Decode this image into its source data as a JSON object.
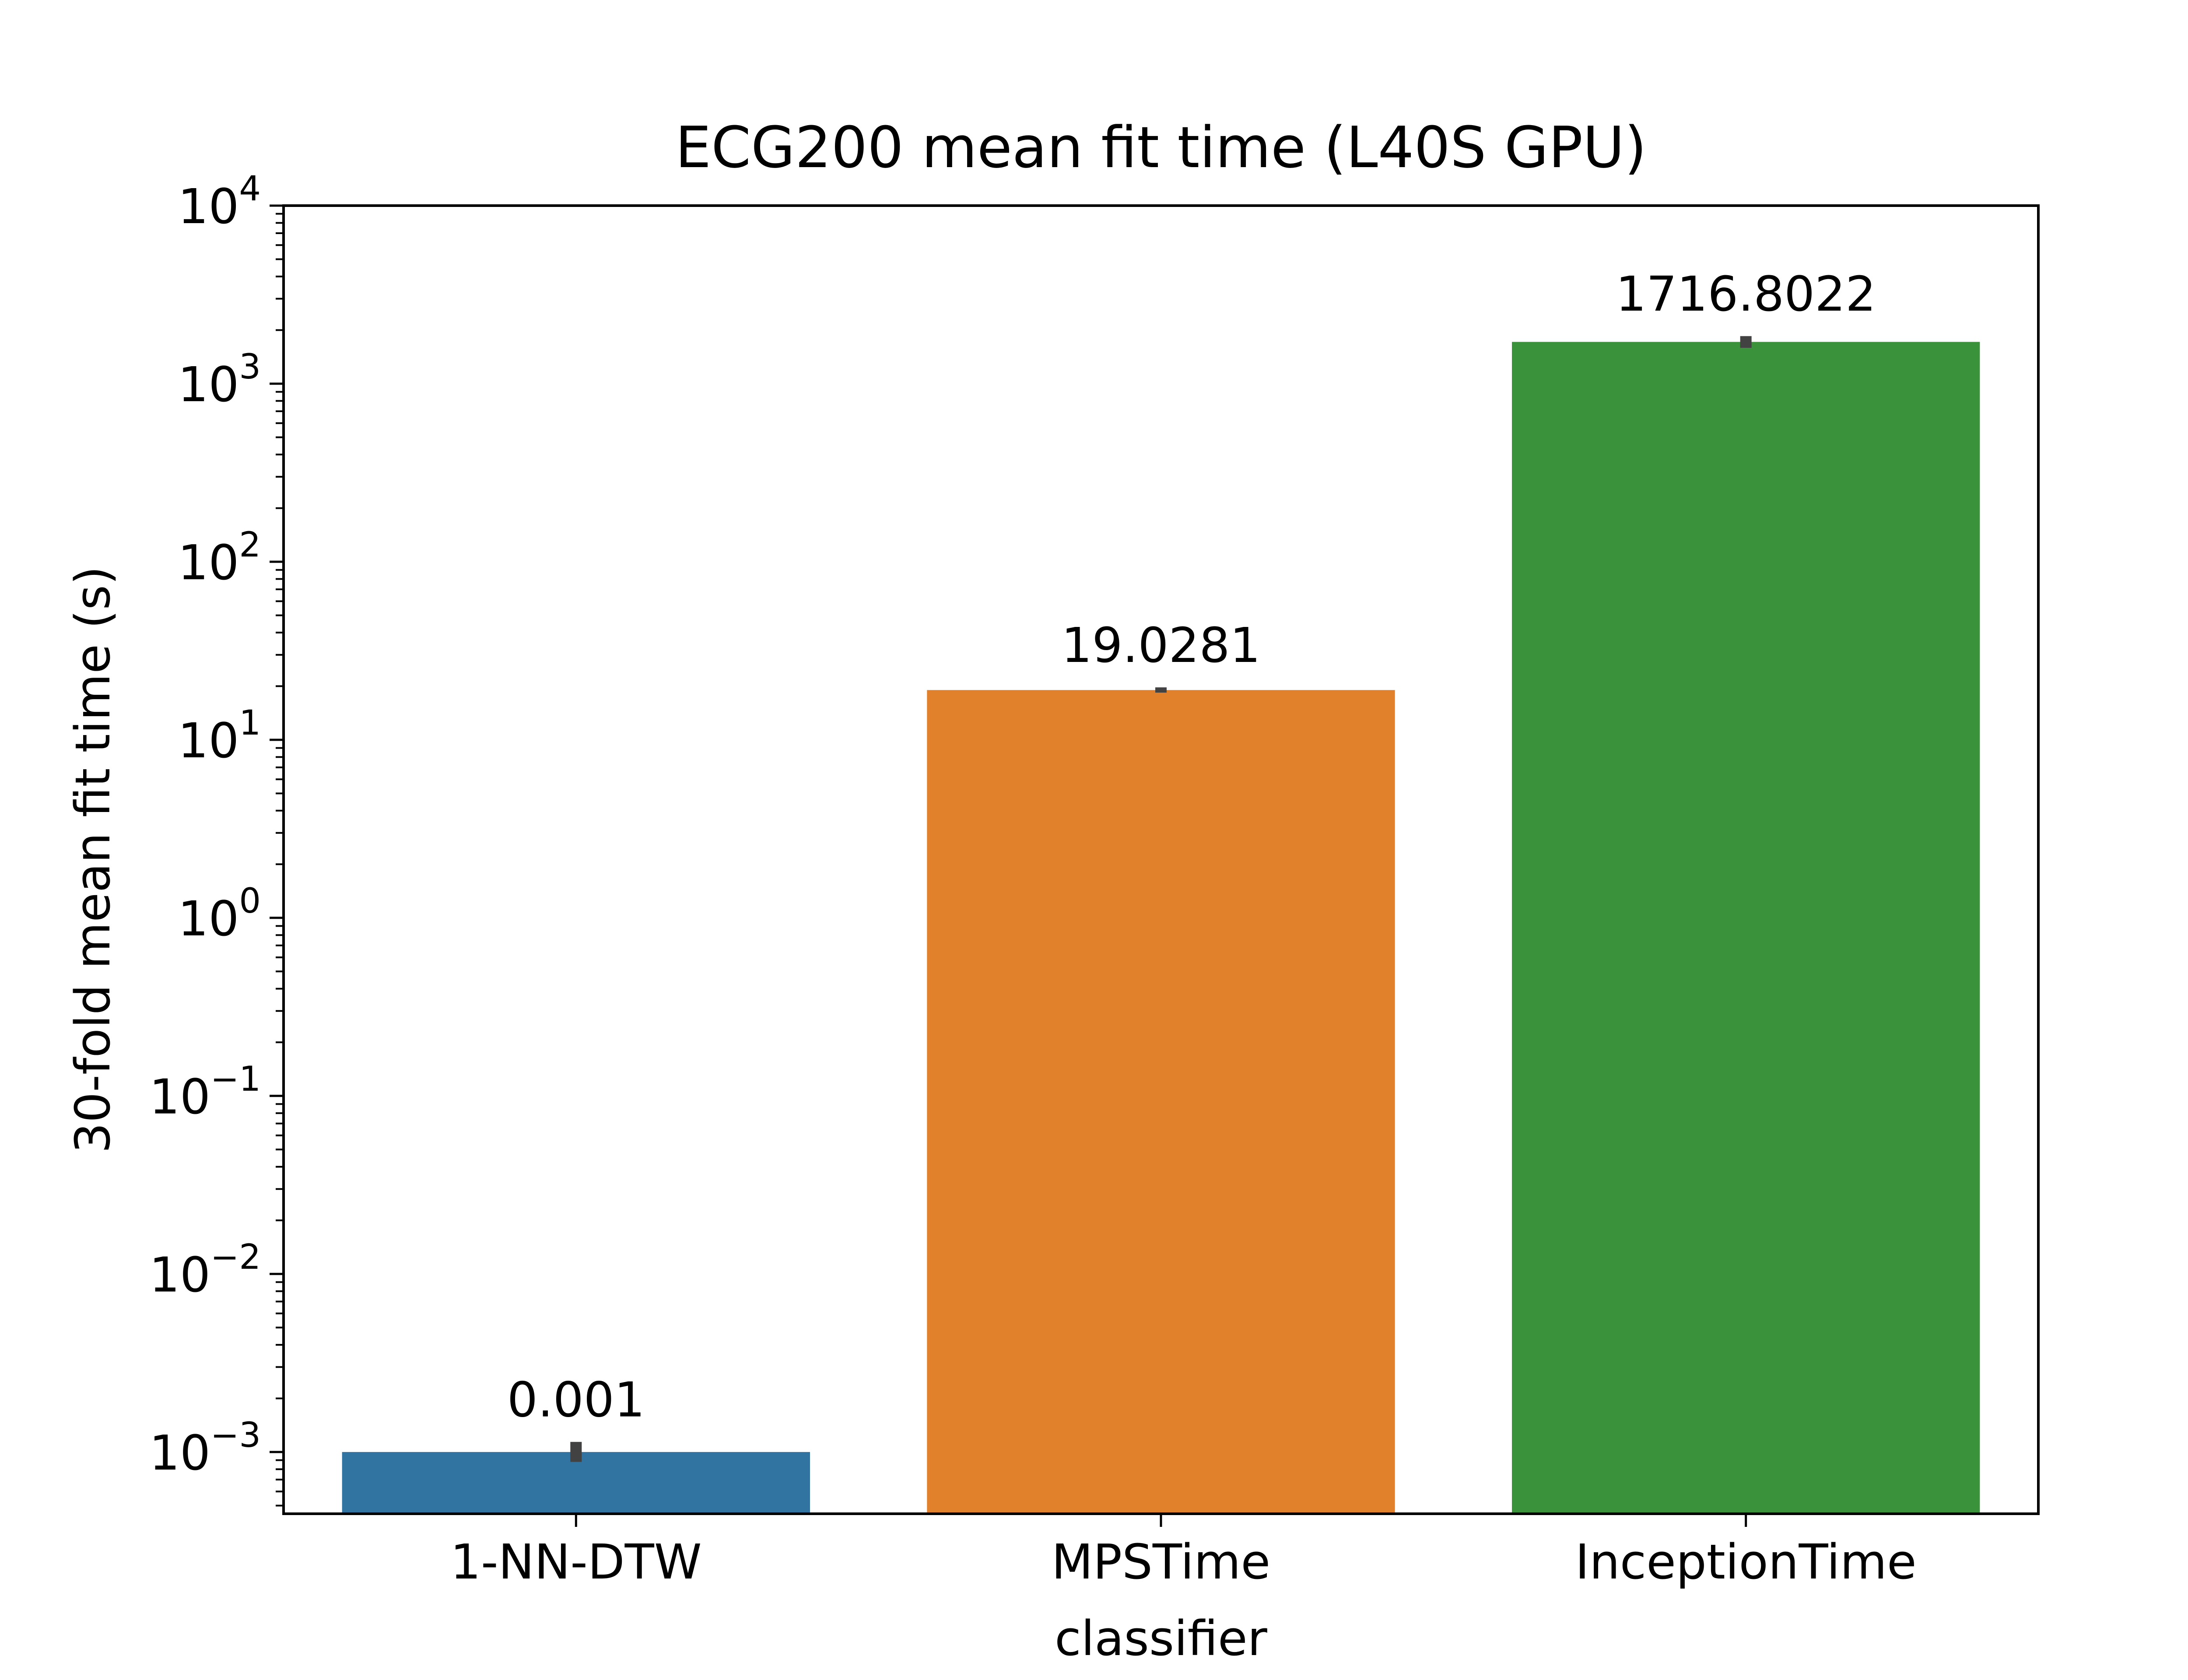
{
  "chart_data": {
    "type": "bar",
    "title": "ECG200 mean fit time (L40S GPU)",
    "xlabel": "classifier",
    "ylabel": "30-fold mean fit time (s)",
    "yscale": "log",
    "ylim": [
      0.00045,
      10000
    ],
    "y_ticks": [
      {
        "value": 0.001,
        "base": "10",
        "exp": "−3"
      },
      {
        "value": 0.01,
        "base": "10",
        "exp": "−2"
      },
      {
        "value": 0.1,
        "base": "10",
        "exp": "−1"
      },
      {
        "value": 1,
        "base": "10",
        "exp": "0"
      },
      {
        "value": 10,
        "base": "10",
        "exp": "1"
      },
      {
        "value": 100,
        "base": "10",
        "exp": "2"
      },
      {
        "value": 1000,
        "base": "10",
        "exp": "3"
      },
      {
        "value": 10000,
        "base": "10",
        "exp": "4"
      }
    ],
    "categories": [
      "1-NN-DTW",
      "MPSTime",
      "InceptionTime"
    ],
    "values": [
      0.001,
      19.0281,
      1716.8022
    ],
    "value_labels": [
      "0.001",
      "19.0281",
      "1716.8022"
    ],
    "error_bars": [
      [
        0.00088,
        0.00114
      ],
      [
        18.4,
        19.7
      ],
      [
        1590,
        1850
      ]
    ],
    "colors": [
      "#3274a1",
      "#e1812c",
      "#3a923a"
    ],
    "grid": false,
    "legend": false
  }
}
